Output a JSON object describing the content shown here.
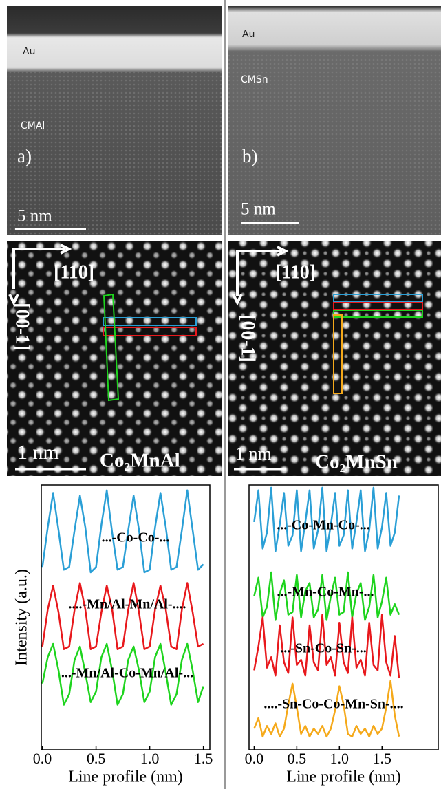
{
  "panels": {
    "a": {
      "layer": "Au",
      "film": "CMAl",
      "letter": "a)",
      "scale": "5 nm"
    },
    "b": {
      "layer": "Au",
      "film": "CMSn",
      "letter": "b)",
      "scale": "5 nm"
    },
    "c": {
      "direction_x": "[110]",
      "direction_y": "[00-1]",
      "scale": "1 nm",
      "formula": "Co₂MnAl"
    },
    "d": {
      "direction_x": "[110]",
      "direction_y": "[00-1]",
      "scale": "1 nm",
      "formula": "Co₂MnSn"
    }
  },
  "chart_data": [
    {
      "type": "line",
      "ylabel": "Intensity (a.u.)",
      "xlabel": "Line profile (nm)",
      "xlim": [
        -0.01,
        1.56
      ],
      "ylim": [
        0,
        10
      ],
      "xticks": [
        {
          "value": 0,
          "label": "0.0"
        },
        0.5,
        {
          "value": 1,
          "label": "1.0"
        },
        1.5
      ],
      "x": [
        0,
        0.05,
        0.1,
        0.15,
        0.2,
        0.25,
        0.3,
        0.35,
        0.4,
        0.45,
        0.5,
        0.55,
        0.6,
        0.65,
        0.7,
        0.75,
        0.8,
        0.85,
        0.9,
        0.95,
        1,
        1.05,
        1.1,
        1.15,
        1.2,
        1.25,
        1.3,
        1.35,
        1.4,
        1.45,
        1.5
      ],
      "series": [
        {
          "name": "...-Co-Co-...",
          "color": "#2a9fd6",
          "values": [
            6.9,
            8.4,
            9.7,
            8.3,
            6.8,
            6.9,
            8.3,
            9.6,
            8.4,
            6.7,
            6.9,
            8.5,
            9.8,
            8.2,
            6.8,
            6.9,
            8.3,
            9.6,
            8.3,
            6.7,
            6.8,
            8.4,
            9.7,
            8.4,
            6.8,
            6.9,
            8.3,
            9.8,
            8.3,
            6.8,
            7.0
          ]
        },
        {
          "name": "....-Mn/Al-Mn/Al-....",
          "color": "#e8181c",
          "values": [
            3.9,
            5.3,
            6.2,
            5.2,
            3.8,
            3.9,
            5.3,
            6.3,
            5.3,
            3.8,
            3.9,
            5.2,
            6.2,
            5.3,
            3.8,
            3.9,
            5.3,
            6.3,
            5.2,
            3.8,
            3.9,
            5.3,
            6.2,
            5.3,
            3.9,
            3.8,
            5.3,
            6.3,
            5.2,
            3.9,
            4.0
          ]
        },
        {
          "name": "...-Mn/Al-Co-Mn/Al-...",
          "color": "#1ed41e",
          "values": [
            2.5,
            3.5,
            4.0,
            3.0,
            1.7,
            2.1,
            3.4,
            3.9,
            2.9,
            1.8,
            2.2,
            3.5,
            4.0,
            3.0,
            1.7,
            2.1,
            3.4,
            3.9,
            3.0,
            1.8,
            2.2,
            3.5,
            4.0,
            2.9,
            1.7,
            2.1,
            3.4,
            4.0,
            3.0,
            1.8,
            2.4
          ]
        }
      ]
    },
    {
      "type": "line",
      "xlabel": "Line profile (nm)",
      "xlim": [
        -0.06,
        2.16
      ],
      "ylim": [
        0,
        10
      ],
      "xticks": [
        {
          "value": 0,
          "label": "0.0"
        },
        0.5,
        {
          "value": 1,
          "label": "1.0"
        },
        1.5
      ],
      "x": [
        0,
        0.05,
        0.1,
        0.15,
        0.2,
        0.25,
        0.3,
        0.35,
        0.4,
        0.45,
        0.5,
        0.55,
        0.6,
        0.65,
        0.7,
        0.75,
        0.8,
        0.85,
        0.9,
        0.95,
        1,
        1.05,
        1.1,
        1.15,
        1.2,
        1.25,
        1.3,
        1.35,
        1.4,
        1.45,
        1.5,
        1.55,
        1.6,
        1.65,
        1.7
      ],
      "series": [
        {
          "name": "...-Co-Mn-Co-...",
          "color": "#2a9fd6",
          "values": [
            8.6,
            9.8,
            7.6,
            8.2,
            9.9,
            7.5,
            8.5,
            9.7,
            7.7,
            8.1,
            9.8,
            7.5,
            8.6,
            9.8,
            7.6,
            8.3,
            9.9,
            7.5,
            8.5,
            9.7,
            7.7,
            8.1,
            9.8,
            7.6,
            8.6,
            9.8,
            7.5,
            8.3,
            9.9,
            7.6,
            8.4,
            9.7,
            7.7,
            8.2,
            9.6
          ]
        },
        {
          "name": "...-Mn-Co-Mn-...",
          "color": "#1ed41e",
          "values": [
            5.8,
            6.5,
            5.0,
            5.4,
            6.7,
            4.9,
            5.9,
            6.4,
            5.1,
            5.2,
            6.6,
            5.0,
            6.0,
            6.3,
            5.0,
            5.3,
            6.6,
            4.9,
            5.8,
            6.5,
            5.1,
            5.2,
            6.7,
            5.0,
            5.9,
            6.3,
            4.9,
            5.4,
            6.6,
            5.0,
            5.6,
            6.5,
            5.1,
            5.5,
            5.1
          ]
        },
        {
          "name": "...-Sn-Co-Sn-...",
          "color": "#e8181c",
          "values": [
            3.0,
            3.9,
            5.0,
            3.1,
            3.5,
            2.8,
            4.7,
            3.3,
            2.9,
            5.0,
            3.2,
            3.4,
            2.8,
            4.7,
            3.3,
            3.0,
            5.1,
            3.2,
            3.5,
            2.8,
            4.8,
            3.3,
            2.9,
            5.0,
            3.1,
            3.4,
            2.8,
            4.8,
            3.2,
            3.0,
            5.1,
            3.3,
            2.8,
            4.3,
            2.7
          ]
        },
        {
          "name": "....-Sn-Co-Co-Mn-Sn-....",
          "color": "#f5a91a",
          "values": [
            0.8,
            1.2,
            0.5,
            0.9,
            0.6,
            1.0,
            0.5,
            0.8,
            1.7,
            2.5,
            1.6,
            0.6,
            0.9,
            0.5,
            0.8,
            0.6,
            0.9,
            0.5,
            0.8,
            1.5,
            2.4,
            1.7,
            0.6,
            0.5,
            0.9,
            0.6,
            0.8,
            0.5,
            0.9,
            0.6,
            0.8,
            1.6,
            2.6,
            1.3,
            0.5
          ]
        }
      ]
    }
  ]
}
